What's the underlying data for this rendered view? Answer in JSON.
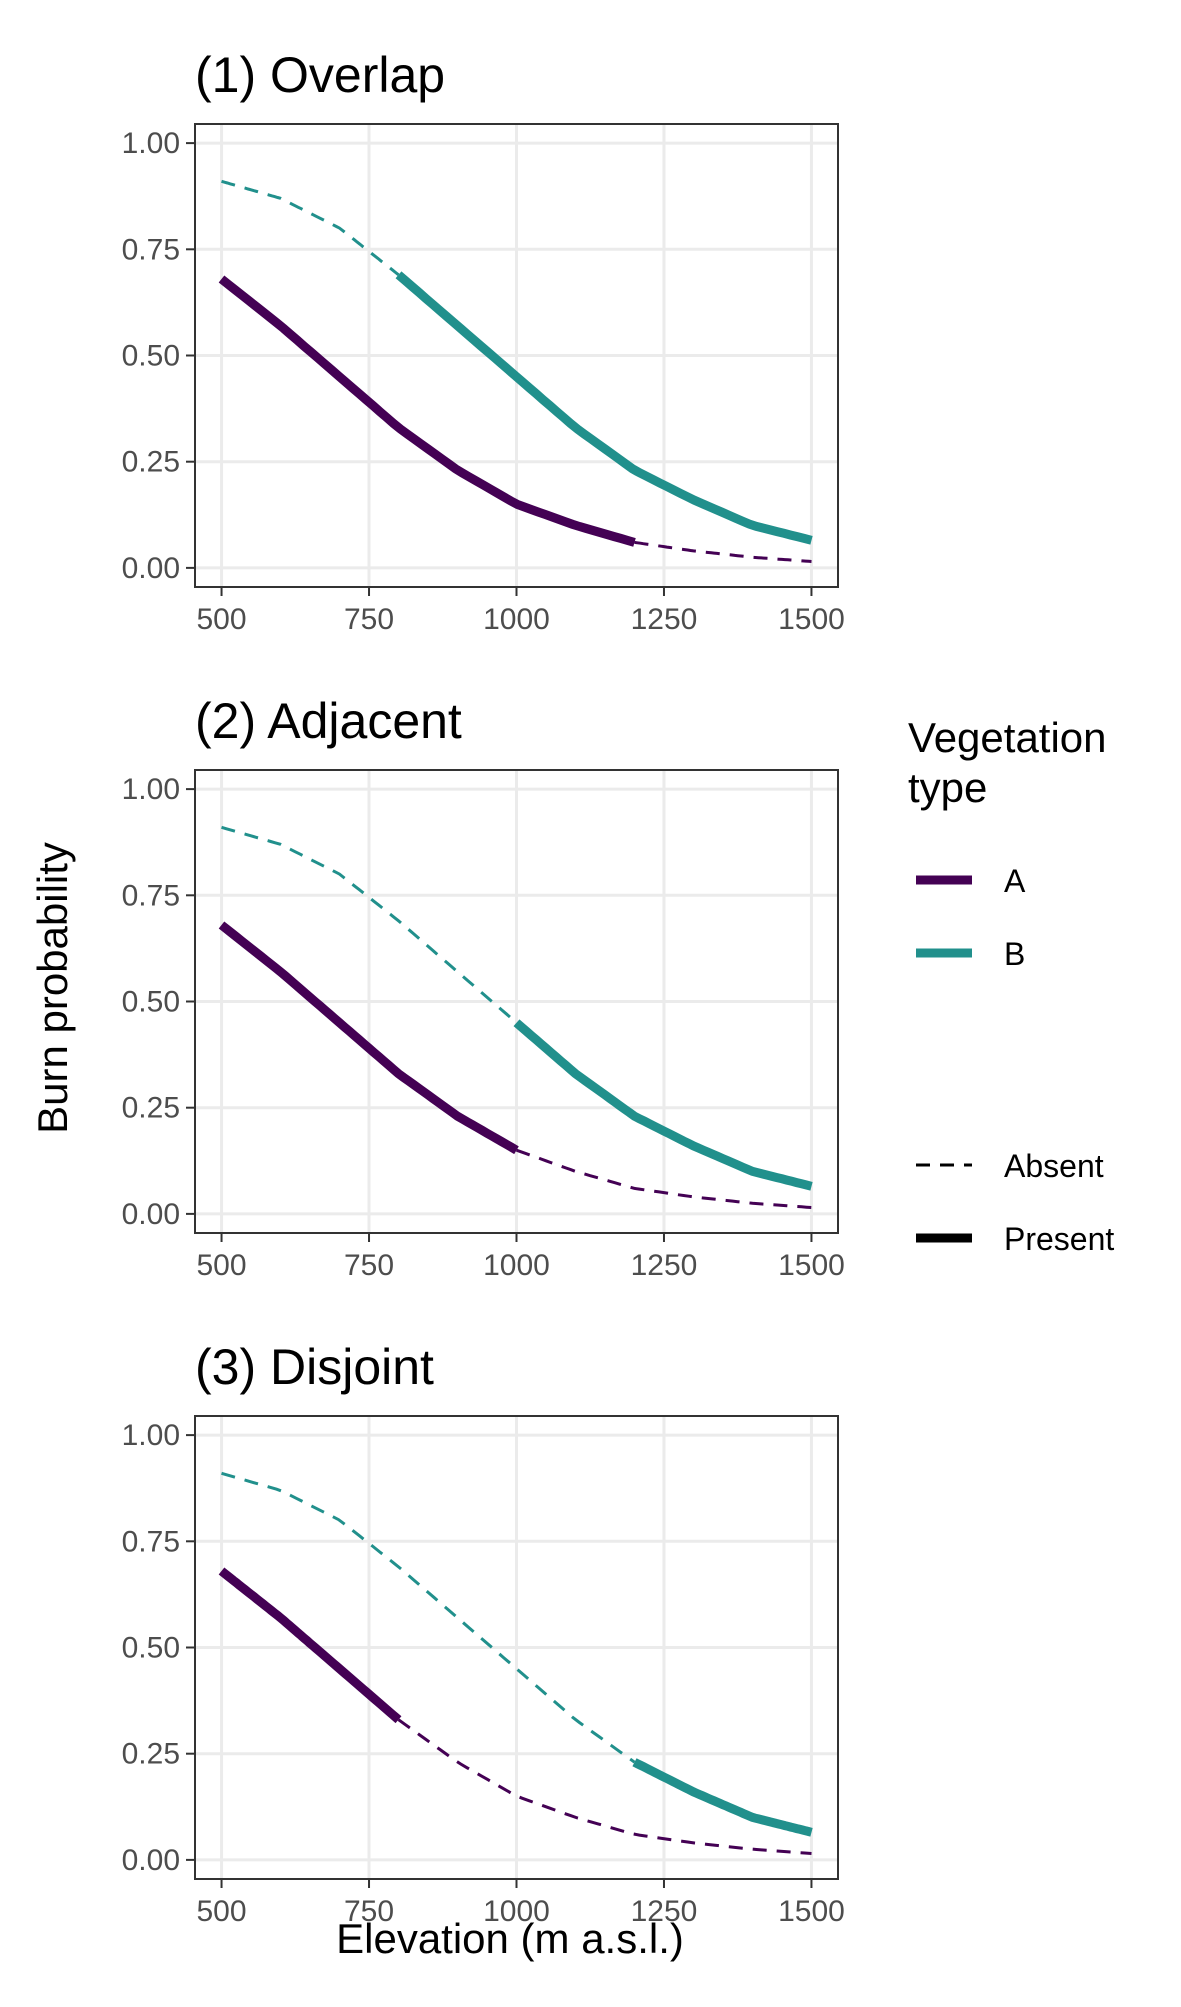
{
  "chart_data": {
    "type": "line",
    "ylabel": "Burn probability",
    "xlabel": "Elevation (m a.s.l.)",
    "xlim": [
      500,
      1500
    ],
    "ylim": [
      0,
      1
    ],
    "x_ticks": [
      "500",
      "750",
      "1000",
      "1250",
      "1500"
    ],
    "y_ticks": [
      "0.00",
      "0.25",
      "0.50",
      "0.75",
      "1.00"
    ],
    "grid": true,
    "legend_position": "right",
    "legend": {
      "color_title_line1": "Vegetation",
      "color_title_line2": "type",
      "color_entries": [
        {
          "label": "A",
          "color": "#440154"
        },
        {
          "label": "B",
          "color": "#21908C"
        }
      ],
      "linetype_entries": [
        {
          "label": "Absent",
          "style": "dashed"
        },
        {
          "label": "Present",
          "style": "solid"
        }
      ]
    },
    "curves": {
      "A": {
        "color": "#440154",
        "x": [
          500,
          600,
          700,
          800,
          900,
          1000,
          1100,
          1200,
          1300,
          1400,
          1500
        ],
        "y": [
          0.68,
          0.57,
          0.45,
          0.33,
          0.23,
          0.15,
          0.1,
          0.06,
          0.04,
          0.025,
          0.015
        ]
      },
      "B": {
        "color": "#21908C",
        "x": [
          500,
          600,
          700,
          800,
          900,
          1000,
          1100,
          1200,
          1300,
          1400,
          1500
        ],
        "y": [
          0.91,
          0.87,
          0.8,
          0.69,
          0.57,
          0.45,
          0.33,
          0.23,
          0.16,
          0.1,
          0.065
        ]
      }
    },
    "panels": [
      {
        "title": "(1) Overlap",
        "present_range": {
          "A": [
            500,
            1200
          ],
          "B": [
            800,
            1500
          ]
        }
      },
      {
        "title": "(2) Adjacent",
        "present_range": {
          "A": [
            500,
            1000
          ],
          "B": [
            1000,
            1500
          ]
        }
      },
      {
        "title": "(3) Disjoint",
        "present_range": {
          "A": [
            500,
            800
          ],
          "B": [
            1200,
            1500
          ]
        }
      }
    ]
  }
}
